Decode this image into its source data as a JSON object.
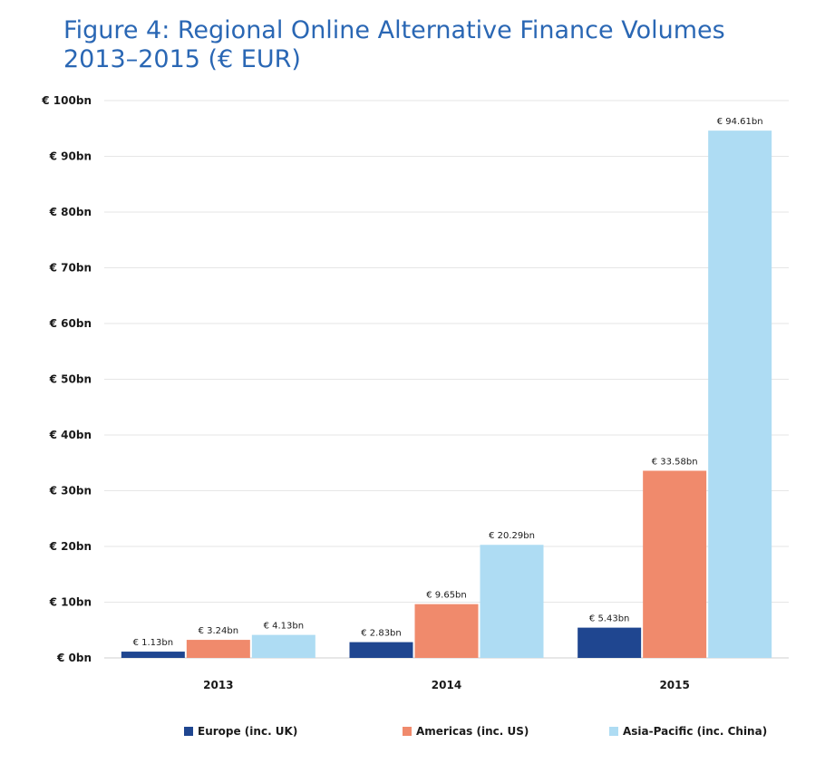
{
  "header": {
    "title_line1": "Figure 4: Regional Online Alternative Finance Volumes",
    "title_line2": "2013–2015 (€ EUR)"
  },
  "chart_data": {
    "type": "bar",
    "title": "Figure 4: Regional Online Alternative Finance Volumes 2013–2015 (€ EUR)",
    "xlabel": "",
    "ylabel": "",
    "categories": [
      "2013",
      "2014",
      "2015"
    ],
    "ylim": [
      0,
      100
    ],
    "yticks": [
      0,
      10,
      20,
      30,
      40,
      50,
      60,
      70,
      80,
      90,
      100
    ],
    "ytick_labels": [
      "€ 0bn",
      "€ 10bn",
      "€ 20bn",
      "€ 30bn",
      "€ 40bn",
      "€ 50bn",
      "€ 60bn",
      "€ 70bn",
      "€ 80bn",
      "€ 90bn",
      "€ 100bn"
    ],
    "grid": true,
    "legend_position": "bottom",
    "series": [
      {
        "name": "Europe (inc. UK)",
        "color": "#1f4690",
        "values": [
          1.13,
          2.83,
          5.43
        ],
        "labels": [
          "€ 1.13bn",
          "€ 2.83bn",
          "€ 5.43bn"
        ]
      },
      {
        "name": "Americas (inc. US)",
        "color": "#f08a6c",
        "values": [
          3.24,
          9.65,
          33.58
        ],
        "labels": [
          "€ 3.24bn",
          "€ 9.65bn",
          "€ 33.58bn"
        ]
      },
      {
        "name": "Asia-Pacific (inc. China)",
        "color": "#aedcf3",
        "values": [
          4.13,
          20.29,
          94.61
        ],
        "labels": [
          "€ 4.13bn",
          "€ 20.29bn",
          "€ 94.61bn"
        ]
      }
    ]
  },
  "legend": {
    "items": [
      {
        "label": "Europe (inc. UK)",
        "color": "#1f4690"
      },
      {
        "label": "Americas (inc. US)",
        "color": "#f08a6c"
      },
      {
        "label": "Asia-Pacific (inc. China)",
        "color": "#aedcf3"
      }
    ]
  }
}
